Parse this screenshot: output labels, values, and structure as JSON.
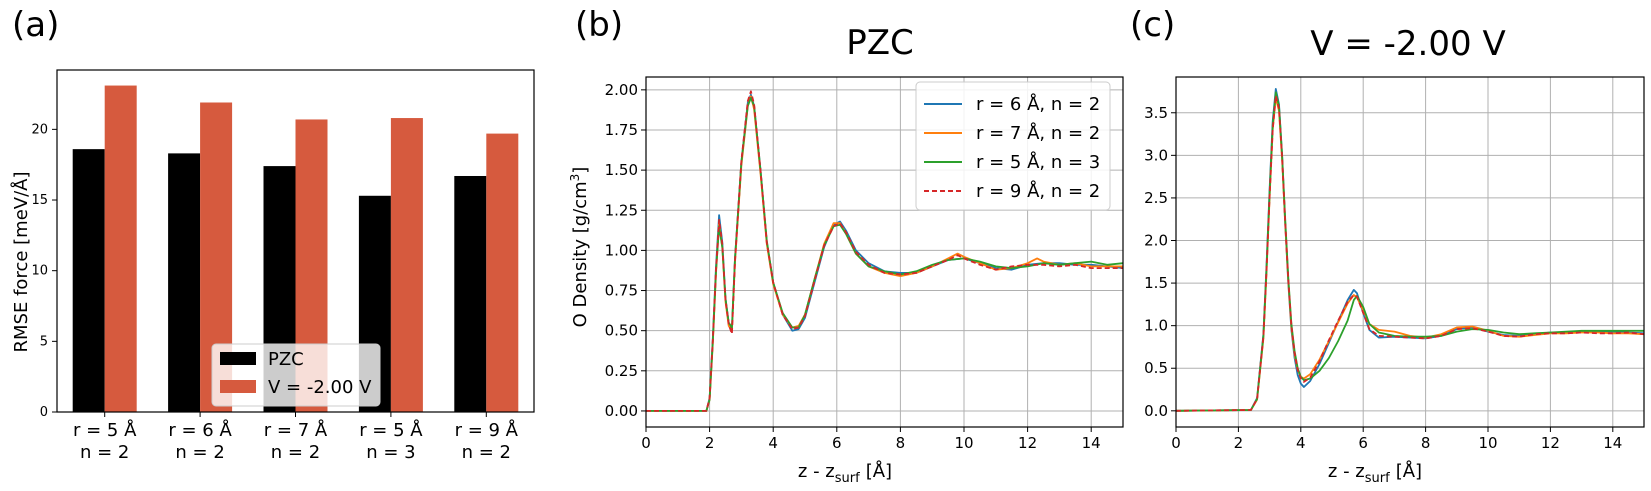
{
  "chart_data": [
    {
      "panel": "(a)",
      "type": "bar",
      "title": "",
      "xlabel": "",
      "ylabel": "RMSE force [meV/Å]",
      "categories": [
        {
          "line1": "r = 5 Å",
          "line2": "n = 2"
        },
        {
          "line1": "r = 6 Å",
          "line2": "n = 2"
        },
        {
          "line1": "r = 7 Å",
          "line2": "n = 2"
        },
        {
          "line1": "r = 5 Å",
          "line2": "n = 3"
        },
        {
          "line1": "r = 9 Å",
          "line2": "n = 2"
        }
      ],
      "series": [
        {
          "name": "PZC",
          "color": "#000000",
          "values": [
            18.6,
            18.3,
            17.4,
            15.3,
            16.7
          ]
        },
        {
          "name": "V = -2.00 V",
          "color": "#d65a3e",
          "values": [
            23.1,
            21.9,
            20.7,
            20.8,
            19.7
          ]
        }
      ],
      "yticks": [
        "0",
        "5",
        "10",
        "15",
        "20"
      ],
      "ylim": [
        0,
        24.2
      ],
      "legend": "lower-center",
      "grid": false
    },
    {
      "panel": "(b)",
      "type": "line",
      "title": "PZC",
      "xlabel": "z - z",
      "xlabel_sub": "surf",
      "xlabel_unit": "[Å]",
      "ylabel": "O Density [g/cm",
      "ylabel_sup": "3",
      "ylabel_end": "]",
      "xlim": [
        0,
        15
      ],
      "ylim": [
        -0.1,
        2.08
      ],
      "xticks": [
        "0",
        "2",
        "4",
        "6",
        "8",
        "10",
        "12",
        "14"
      ],
      "yticks": [
        "0.00",
        "0.25",
        "0.50",
        "0.75",
        "1.00",
        "1.25",
        "1.50",
        "1.75",
        "2.00"
      ],
      "grid": true,
      "legend": "top-right",
      "legend_entries": [
        "r = 6 Å, n = 2",
        "r = 7 Å, n = 2",
        "r = 5 Å, n = 3",
        "r = 9 Å, n = 2"
      ],
      "series": [
        {
          "name": "r = 6 Å, n = 2",
          "color": "#1f77b4",
          "dash": false,
          "x": [
            0,
            1.9,
            2.0,
            2.1,
            2.2,
            2.3,
            2.4,
            2.5,
            2.6,
            2.7,
            2.8,
            3.0,
            3.2,
            3.3,
            3.4,
            3.6,
            3.8,
            4.0,
            4.3,
            4.6,
            4.8,
            5.0,
            5.3,
            5.6,
            5.9,
            6.1,
            6.3,
            6.6,
            7.0,
            7.5,
            8.0,
            8.5,
            9.0,
            9.5,
            10.0,
            10.5,
            11.0,
            11.5,
            12.0,
            12.5,
            13.0,
            13.5,
            14.0,
            14.5,
            15.0
          ],
          "y": [
            0,
            0,
            0.08,
            0.45,
            0.9,
            1.22,
            1.05,
            0.7,
            0.55,
            0.5,
            0.95,
            1.55,
            1.92,
            1.97,
            1.9,
            1.5,
            1.05,
            0.8,
            0.6,
            0.5,
            0.51,
            0.58,
            0.8,
            1.02,
            1.16,
            1.18,
            1.12,
            1.0,
            0.92,
            0.87,
            0.86,
            0.86,
            0.9,
            0.94,
            0.95,
            0.92,
            0.89,
            0.88,
            0.91,
            0.92,
            0.92,
            0.91,
            0.91,
            0.9,
            0.89
          ]
        },
        {
          "name": "r = 7 Å, n = 2",
          "color": "#ff7f0e",
          "dash": false,
          "x": [
            0,
            1.9,
            2.0,
            2.1,
            2.2,
            2.3,
            2.4,
            2.5,
            2.6,
            2.7,
            2.8,
            3.0,
            3.2,
            3.3,
            3.4,
            3.6,
            3.8,
            4.0,
            4.3,
            4.6,
            4.8,
            5.0,
            5.3,
            5.6,
            5.9,
            6.1,
            6.3,
            6.6,
            7.0,
            7.5,
            8.0,
            8.5,
            9.0,
            9.5,
            9.8,
            10.0,
            10.5,
            11.0,
            11.5,
            12.0,
            12.3,
            12.5,
            13.0,
            13.5,
            14.0,
            14.5,
            15.0
          ],
          "y": [
            0,
            0,
            0.07,
            0.42,
            0.86,
            1.17,
            1.02,
            0.68,
            0.53,
            0.5,
            0.93,
            1.53,
            1.9,
            1.96,
            1.88,
            1.48,
            1.04,
            0.79,
            0.6,
            0.52,
            0.53,
            0.6,
            0.82,
            1.04,
            1.17,
            1.17,
            1.1,
            0.98,
            0.9,
            0.86,
            0.84,
            0.86,
            0.9,
            0.95,
            0.98,
            0.96,
            0.92,
            0.88,
            0.89,
            0.92,
            0.95,
            0.93,
            0.91,
            0.92,
            0.9,
            0.9,
            0.9
          ]
        },
        {
          "name": "r = 5 Å, n = 3",
          "color": "#2ca02c",
          "dash": false,
          "x": [
            0,
            1.9,
            2.0,
            2.1,
            2.2,
            2.3,
            2.4,
            2.5,
            2.6,
            2.7,
            2.8,
            3.0,
            3.2,
            3.3,
            3.4,
            3.6,
            3.8,
            4.0,
            4.3,
            4.6,
            4.8,
            5.0,
            5.3,
            5.6,
            5.9,
            6.1,
            6.3,
            6.6,
            7.0,
            7.5,
            8.0,
            8.5,
            9.0,
            9.5,
            10.0,
            10.5,
            11.0,
            11.5,
            12.0,
            12.5,
            13.0,
            13.5,
            14.0,
            14.5,
            15.0
          ],
          "y": [
            0,
            0,
            0.07,
            0.43,
            0.87,
            1.15,
            1.02,
            0.7,
            0.55,
            0.52,
            0.95,
            1.55,
            1.9,
            1.95,
            1.9,
            1.5,
            1.06,
            0.8,
            0.61,
            0.52,
            0.52,
            0.6,
            0.82,
            1.03,
            1.15,
            1.16,
            1.1,
            0.98,
            0.9,
            0.87,
            0.85,
            0.87,
            0.91,
            0.94,
            0.95,
            0.93,
            0.9,
            0.89,
            0.9,
            0.92,
            0.91,
            0.92,
            0.93,
            0.91,
            0.92
          ]
        },
        {
          "name": "r = 9 Å, n = 2",
          "color": "#d62728",
          "dash": true,
          "x": [
            0,
            1.9,
            2.0,
            2.1,
            2.2,
            2.3,
            2.4,
            2.5,
            2.6,
            2.7,
            2.8,
            3.0,
            3.2,
            3.3,
            3.4,
            3.6,
            3.8,
            4.0,
            4.3,
            4.6,
            4.8,
            5.0,
            5.3,
            5.6,
            5.9,
            6.1,
            6.3,
            6.6,
            7.0,
            7.5,
            8.0,
            8.5,
            9.0,
            9.5,
            9.8,
            10.0,
            10.5,
            11.0,
            11.5,
            12.0,
            12.5,
            13.0,
            13.5,
            14.0,
            14.5,
            15.0
          ],
          "y": [
            0,
            0,
            0.08,
            0.44,
            0.88,
            1.19,
            1.04,
            0.69,
            0.54,
            0.48,
            0.93,
            1.56,
            1.93,
            1.99,
            1.91,
            1.5,
            1.05,
            0.8,
            0.6,
            0.51,
            0.52,
            0.59,
            0.81,
            1.03,
            1.15,
            1.17,
            1.11,
            0.99,
            0.91,
            0.86,
            0.85,
            0.86,
            0.9,
            0.94,
            0.97,
            0.95,
            0.91,
            0.88,
            0.9,
            0.91,
            0.91,
            0.9,
            0.91,
            0.89,
            0.89,
            0.89
          ]
        }
      ]
    },
    {
      "panel": "(c)",
      "type": "line",
      "title": "V = -2.00 V",
      "xlabel": "z - z",
      "xlabel_sub": "surf",
      "xlabel_unit": "[Å]",
      "xlim": [
        0,
        15
      ],
      "ylim": [
        -0.19,
        3.92
      ],
      "xticks": [
        "0",
        "2",
        "4",
        "6",
        "8",
        "10",
        "12",
        "14"
      ],
      "yticks": [
        "0.0",
        "0.5",
        "1.0",
        "1.5",
        "2.0",
        "2.5",
        "3.0",
        "3.5"
      ],
      "grid": true,
      "series": [
        {
          "name": "r = 6 Å, n = 2",
          "color": "#1f77b4",
          "dash": false,
          "x": [
            0,
            2.4,
            2.6,
            2.8,
            2.9,
            3.0,
            3.1,
            3.2,
            3.3,
            3.4,
            3.5,
            3.6,
            3.7,
            3.8,
            3.9,
            4.0,
            4.1,
            4.3,
            4.6,
            4.9,
            5.2,
            5.5,
            5.7,
            5.8,
            6.0,
            6.2,
            6.5,
            7.0,
            7.5,
            8.0,
            8.5,
            9.0,
            9.5,
            10.0,
            10.5,
            11.0,
            11.5,
            12.0,
            12.5,
            13.0,
            13.5,
            14.0,
            14.5,
            15.0
          ],
          "y": [
            0,
            0.01,
            0.15,
            0.9,
            1.7,
            2.6,
            3.4,
            3.78,
            3.6,
            3.0,
            2.2,
            1.5,
            0.95,
            0.62,
            0.42,
            0.32,
            0.28,
            0.35,
            0.55,
            0.8,
            1.05,
            1.3,
            1.42,
            1.38,
            1.15,
            0.95,
            0.86,
            0.87,
            0.86,
            0.85,
            0.88,
            0.96,
            0.98,
            0.93,
            0.89,
            0.88,
            0.9,
            0.92,
            0.92,
            0.93,
            0.93,
            0.93,
            0.92,
            0.91
          ]
        },
        {
          "name": "r = 7 Å, n = 2",
          "color": "#ff7f0e",
          "dash": false,
          "x": [
            0,
            2.4,
            2.6,
            2.8,
            2.9,
            3.0,
            3.1,
            3.2,
            3.3,
            3.4,
            3.5,
            3.6,
            3.7,
            3.8,
            3.9,
            4.0,
            4.1,
            4.3,
            4.6,
            4.9,
            5.2,
            5.5,
            5.7,
            5.8,
            6.0,
            6.2,
            6.5,
            7.0,
            7.5,
            8.0,
            8.5,
            9.0,
            9.5,
            10.0,
            10.5,
            11.0,
            11.5,
            12.0,
            12.5,
            13.0,
            13.5,
            14.0,
            14.5,
            15.0
          ],
          "y": [
            0,
            0.01,
            0.13,
            0.85,
            1.62,
            2.5,
            3.3,
            3.68,
            3.52,
            2.95,
            2.2,
            1.52,
            0.98,
            0.66,
            0.48,
            0.4,
            0.38,
            0.43,
            0.6,
            0.82,
            1.04,
            1.26,
            1.36,
            1.33,
            1.18,
            1.02,
            0.95,
            0.93,
            0.88,
            0.86,
            0.9,
            0.98,
            0.99,
            0.94,
            0.88,
            0.87,
            0.89,
            0.91,
            0.91,
            0.92,
            0.92,
            0.91,
            0.91,
            0.9
          ]
        },
        {
          "name": "r = 5 Å, n = 3",
          "color": "#2ca02c",
          "dash": false,
          "x": [
            0,
            2.4,
            2.6,
            2.8,
            2.9,
            3.0,
            3.1,
            3.2,
            3.3,
            3.4,
            3.5,
            3.6,
            3.7,
            3.8,
            3.9,
            4.0,
            4.1,
            4.3,
            4.6,
            4.9,
            5.2,
            5.5,
            5.7,
            5.8,
            6.0,
            6.2,
            6.5,
            7.0,
            7.5,
            8.0,
            8.5,
            9.0,
            9.5,
            10.0,
            10.5,
            11.0,
            11.5,
            12.0,
            12.5,
            13.0,
            13.5,
            14.0,
            14.5,
            15.0
          ],
          "y": [
            0,
            0.01,
            0.14,
            0.88,
            1.66,
            2.55,
            3.35,
            3.74,
            3.58,
            3.0,
            2.25,
            1.56,
            1.02,
            0.7,
            0.5,
            0.4,
            0.36,
            0.38,
            0.47,
            0.62,
            0.82,
            1.06,
            1.3,
            1.35,
            1.22,
            1.02,
            0.92,
            0.88,
            0.87,
            0.87,
            0.88,
            0.93,
            0.96,
            0.95,
            0.92,
            0.9,
            0.91,
            0.92,
            0.93,
            0.94,
            0.94,
            0.94,
            0.94,
            0.94
          ]
        },
        {
          "name": "r = 9 Å, n = 2",
          "color": "#d62728",
          "dash": true,
          "x": [
            0,
            2.4,
            2.6,
            2.8,
            2.9,
            3.0,
            3.1,
            3.2,
            3.3,
            3.4,
            3.5,
            3.6,
            3.7,
            3.8,
            3.9,
            4.0,
            4.1,
            4.3,
            4.6,
            4.9,
            5.2,
            5.5,
            5.7,
            5.8,
            6.0,
            6.2,
            6.5,
            7.0,
            7.5,
            8.0,
            8.5,
            9.0,
            9.5,
            10.0,
            10.5,
            11.0,
            11.5,
            12.0,
            12.5,
            13.0,
            13.5,
            14.0,
            14.5,
            15.0
          ],
          "y": [
            0,
            0.01,
            0.14,
            0.87,
            1.65,
            2.52,
            3.3,
            3.7,
            3.55,
            2.98,
            2.22,
            1.54,
            1.0,
            0.68,
            0.48,
            0.38,
            0.34,
            0.39,
            0.58,
            0.83,
            1.06,
            1.28,
            1.36,
            1.34,
            1.15,
            0.96,
            0.88,
            0.87,
            0.86,
            0.85,
            0.88,
            0.96,
            0.97,
            0.93,
            0.88,
            0.87,
            0.9,
            0.91,
            0.91,
            0.92,
            0.91,
            0.91,
            0.92,
            0.9
          ]
        }
      ]
    }
  ]
}
